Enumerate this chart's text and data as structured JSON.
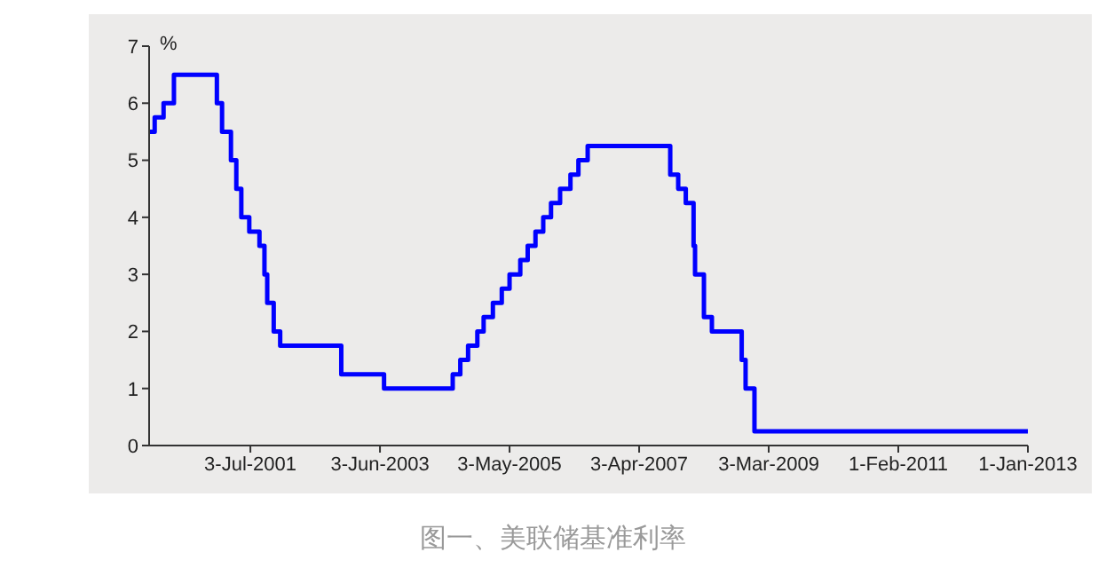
{
  "chart_data": {
    "type": "step",
    "title": "图一、美联储基准利率",
    "ylabel": "%",
    "x": [
      "2000-01-03",
      "2000-02-02",
      "2000-03-21",
      "2000-05-16",
      "2001-01-03",
      "2001-01-31",
      "2001-03-20",
      "2001-04-18",
      "2001-05-15",
      "2001-06-27",
      "2001-08-21",
      "2001-09-17",
      "2001-10-02",
      "2001-11-06",
      "2001-12-11",
      "2002-11-06",
      "2003-06-25",
      "2004-06-30",
      "2004-08-10",
      "2004-09-21",
      "2004-11-10",
      "2004-12-14",
      "2005-02-02",
      "2005-03-22",
      "2005-05-03",
      "2005-06-30",
      "2005-08-09",
      "2005-09-20",
      "2005-11-01",
      "2005-12-13",
      "2006-01-31",
      "2006-03-28",
      "2006-05-10",
      "2006-06-29",
      "2007-09-18",
      "2007-10-31",
      "2007-12-11",
      "2008-01-22",
      "2008-01-30",
      "2008-03-18",
      "2008-04-30",
      "2008-10-08",
      "2008-10-29",
      "2008-12-16",
      "2013-01-01"
    ],
    "series": [
      {
        "color": "#0000ff",
        "values": [
          5.5,
          5.75,
          6.0,
          6.5,
          6.0,
          5.5,
          5.0,
          4.5,
          4.0,
          3.75,
          3.5,
          3.0,
          2.5,
          2.0,
          1.75,
          1.25,
          1.0,
          1.25,
          1.5,
          1.75,
          2.0,
          2.25,
          2.5,
          2.75,
          3.0,
          3.25,
          3.5,
          3.75,
          4.0,
          4.25,
          4.5,
          4.75,
          5.0,
          5.25,
          4.75,
          4.5,
          4.25,
          3.5,
          3.0,
          2.25,
          2.0,
          1.5,
          1.0,
          0.25,
          0.25
        ]
      }
    ],
    "xlim": [
      "2000-01-03",
      "2013-01-01"
    ],
    "xticks": [
      {
        "value": "2001-07-03",
        "label": "3-Jul-2001"
      },
      {
        "value": "2003-06-03",
        "label": "3-Jun-2003"
      },
      {
        "value": "2005-05-03",
        "label": "3-May-2005"
      },
      {
        "value": "2007-04-03",
        "label": "3-Apr-2007"
      },
      {
        "value": "2009-03-03",
        "label": "3-Mar-2009"
      },
      {
        "value": "2011-02-01",
        "label": "1-Feb-2011"
      },
      {
        "value": "2013-01-01",
        "label": "1-Jan-2013"
      }
    ],
    "ylim": [
      0,
      7
    ],
    "yticks": [
      0,
      1,
      2,
      3,
      4,
      5,
      6,
      7
    ],
    "grid": false,
    "legend": false,
    "marker": "none",
    "line_style": "solid"
  }
}
